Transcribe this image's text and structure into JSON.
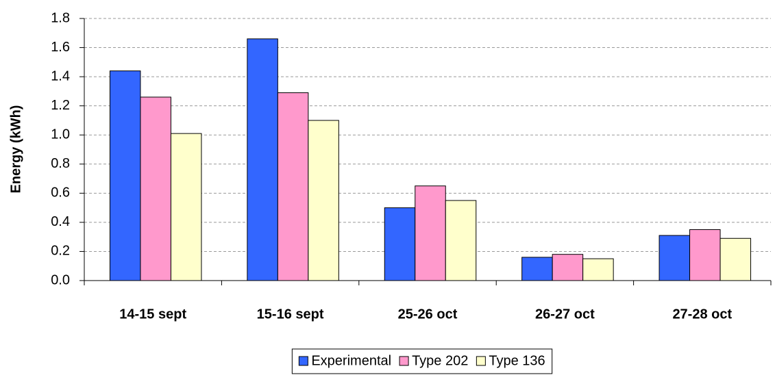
{
  "chart_data": {
    "type": "bar",
    "y_label": "Energy (kWh)",
    "categories": [
      "14-15 sept",
      "15-16 sept",
      "25-26 oct",
      "26-27 oct",
      "27-28 oct"
    ],
    "series": [
      {
        "name": "Experimental",
        "color": "#3366ff",
        "values": [
          1.44,
          1.66,
          0.5,
          0.16,
          0.31
        ]
      },
      {
        "name": "Type 202",
        "color": "#ff99cc",
        "values": [
          1.26,
          1.29,
          0.65,
          0.18,
          0.35
        ]
      },
      {
        "name": "Type 136",
        "color": "#ffffcc",
        "values": [
          1.01,
          1.1,
          0.55,
          0.15,
          0.29
        ]
      }
    ],
    "ylim": [
      0,
      1.8
    ],
    "yticks": [
      {
        "value": 0,
        "label": "0.0"
      },
      0.2,
      0.4,
      0.6,
      0.8,
      {
        "value": 1,
        "label": "1.0"
      },
      1.2,
      1.4,
      1.6,
      1.8
    ],
    "grid": true,
    "legend": "bottom"
  }
}
